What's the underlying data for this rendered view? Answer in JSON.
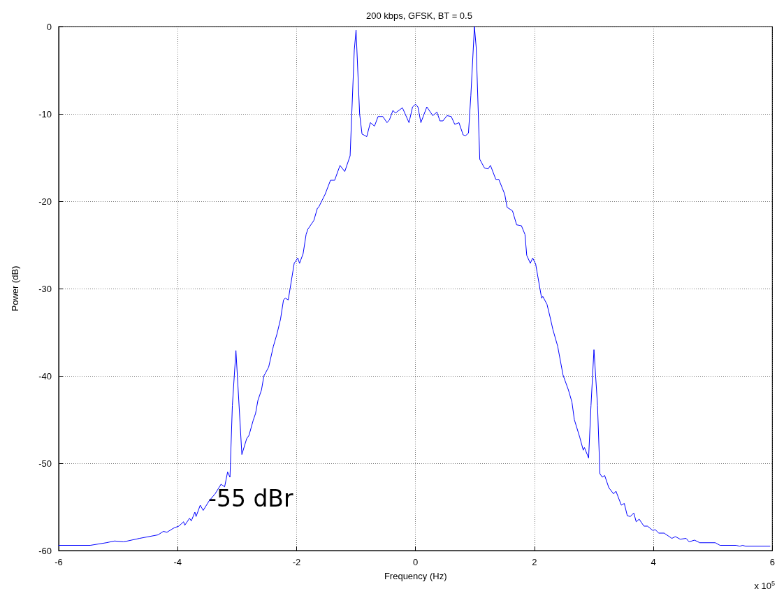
{
  "chart_data": {
    "type": "line",
    "title": "200 kbps, GFSK, BT = 0.5",
    "xlabel": "Frequency (Hz)",
    "ylabel": "Power (dB)",
    "xlim": [
      -6,
      6
    ],
    "xticks": [
      -6,
      -4,
      -2,
      0,
      2,
      4,
      6
    ],
    "ylim": [
      -60,
      0
    ],
    "yticks": [
      -60,
      -50,
      -40,
      -30,
      -20,
      -10,
      0
    ],
    "grid": true,
    "marker": "none",
    "line_style": "solid",
    "annotations": [
      "-55 dBr",
      "x 10$^{5}$"
    ],
    "series": [
      {
        "color": "#0000ff",
        "x": [
          -6.0,
          -5.47,
          -5.2,
          -5.06,
          -4.91,
          -4.64,
          -4.33,
          -4.24,
          -4.18,
          -4.06,
          -3.98,
          -3.9,
          -3.88,
          -3.8,
          -3.77,
          -3.71,
          -3.69,
          -3.62,
          -3.57,
          -3.47,
          -3.37,
          -3.27,
          -3.21,
          -3.16,
          -3.12,
          -3.08,
          -3.02,
          -2.92,
          -2.84,
          -2.8,
          -2.73,
          -2.69,
          -2.65,
          -2.59,
          -2.55,
          -2.47,
          -2.39,
          -2.33,
          -2.27,
          -2.22,
          -2.19,
          -2.14,
          -2.04,
          -1.98,
          -1.95,
          -1.89,
          -1.84,
          -1.81,
          -1.71,
          -1.65,
          -1.63,
          -1.52,
          -1.43,
          -1.36,
          -1.27,
          -1.19,
          -1.1,
          -1.03,
          -1.0,
          -0.94,
          -0.9,
          -0.82,
          -0.76,
          -0.69,
          -0.63,
          -0.55,
          -0.48,
          -0.44,
          -0.38,
          -0.34,
          -0.22,
          -0.11,
          -0.05,
          0.0,
          0.04,
          0.09,
          0.19,
          0.29,
          0.36,
          0.41,
          0.46,
          0.53,
          0.6,
          0.66,
          0.73,
          0.8,
          0.84,
          0.89,
          0.93,
          0.99,
          1.02,
          1.08,
          1.16,
          1.22,
          1.26,
          1.35,
          1.4,
          1.5,
          1.54,
          1.63,
          1.7,
          1.78,
          1.84,
          1.87,
          1.93,
          1.97,
          2.02,
          2.12,
          2.14,
          2.21,
          2.26,
          2.31,
          2.39,
          2.48,
          2.57,
          2.63,
          2.67,
          2.76,
          2.82,
          2.84,
          2.91,
          2.95,
          3.0,
          3.06,
          3.1,
          3.14,
          3.18,
          3.25,
          3.33,
          3.37,
          3.46,
          3.51,
          3.56,
          3.61,
          3.67,
          3.71,
          3.76,
          3.84,
          3.9,
          3.99,
          4.03,
          4.09,
          4.18,
          4.31,
          4.37,
          4.45,
          4.55,
          4.6,
          4.69,
          4.78,
          5.04,
          5.12,
          5.39,
          5.45,
          5.5,
          5.55,
          5.96
        ],
        "values": [
          -59.4,
          -59.4,
          -59.1,
          -58.9,
          -59.0,
          -58.6,
          -58.2,
          -57.8,
          -57.9,
          -57.4,
          -57.2,
          -56.7,
          -57.1,
          -56.3,
          -56.6,
          -55.6,
          -56.1,
          -54.8,
          -55.4,
          -54.3,
          -53.5,
          -52.4,
          -52.7,
          -51.0,
          -51.6,
          -43.4,
          -37.1,
          -49.0,
          -47.2,
          -46.8,
          -45.1,
          -44.3,
          -42.8,
          -41.6,
          -40.0,
          -39.0,
          -36.6,
          -35.2,
          -33.5,
          -31.3,
          -31.1,
          -31.3,
          -27.1,
          -26.5,
          -27.1,
          -26.0,
          -23.8,
          -23.2,
          -22.2,
          -20.8,
          -20.7,
          -19.2,
          -17.6,
          -17.6,
          -15.9,
          -16.6,
          -14.8,
          -2.7,
          -0.4,
          -10.0,
          -12.3,
          -12.6,
          -11.0,
          -11.4,
          -10.3,
          -10.3,
          -11.0,
          -10.7,
          -9.6,
          -9.9,
          -9.3,
          -11.0,
          -9.2,
          -8.9,
          -9.2,
          -11.0,
          -9.2,
          -10.2,
          -9.8,
          -10.8,
          -10.8,
          -10.2,
          -10.3,
          -11.2,
          -11.0,
          -12.4,
          -12.5,
          -12.2,
          -7.9,
          0.0,
          -2.4,
          -15.2,
          -16.2,
          -16.3,
          -15.9,
          -17.5,
          -17.5,
          -19.2,
          -20.7,
          -21.1,
          -22.7,
          -22.8,
          -23.8,
          -26.2,
          -27.1,
          -26.5,
          -27.2,
          -31.1,
          -30.9,
          -31.8,
          -33.2,
          -34.7,
          -36.6,
          -39.9,
          -41.6,
          -43.0,
          -45.0,
          -47.0,
          -48.5,
          -48.2,
          -49.4,
          -43.4,
          -37.0,
          -43.4,
          -51.2,
          -51.6,
          -51.4,
          -52.8,
          -53.5,
          -53.2,
          -54.8,
          -54.6,
          -56.0,
          -56.1,
          -55.7,
          -56.7,
          -56.4,
          -57.2,
          -57.2,
          -57.7,
          -57.6,
          -58.0,
          -58.0,
          -58.6,
          -58.4,
          -58.7,
          -58.6,
          -59.0,
          -58.8,
          -59.1,
          -59.1,
          -59.4,
          -59.4,
          -59.5,
          -59.4,
          -59.5,
          -59.5
        ]
      }
    ]
  }
}
